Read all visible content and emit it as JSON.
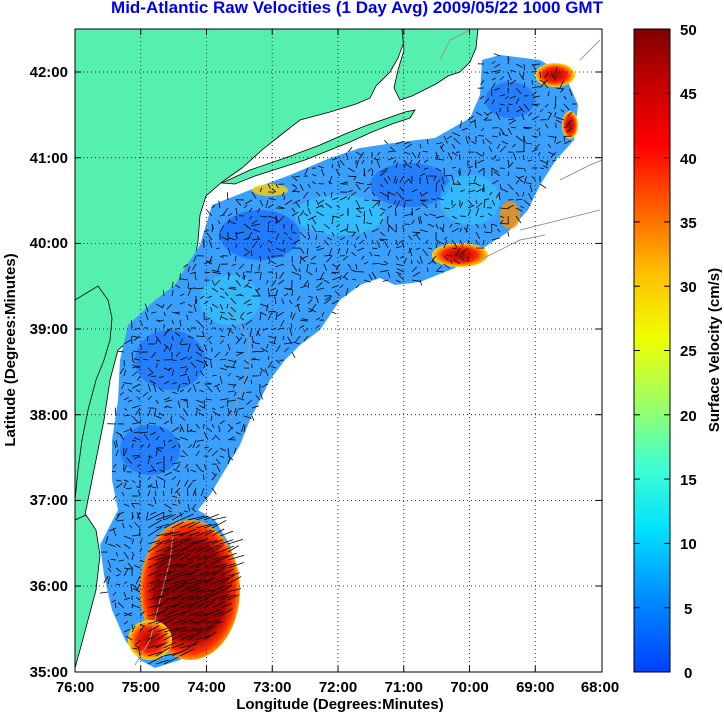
{
  "title": "Mid-Atlantic Raw Velocities (1 Day Avg) 2009/05/22 1000 GMT",
  "x_axis": {
    "label": "Longitude (Degrees:Minutes)",
    "ticks": [
      "76:00",
      "75:00",
      "74:00",
      "73:00",
      "72:00",
      "71:00",
      "70:00",
      "69:00",
      "68:00"
    ]
  },
  "y_axis": {
    "label": "Latitude (Degrees:Minutes)",
    "ticks": [
      "42:00",
      "41:00",
      "40:00",
      "39:00",
      "38:00",
      "37:00",
      "36:00",
      "35:00"
    ]
  },
  "colorbar": {
    "label": "Surface Velocity (cm/s)",
    "ticks": [
      "50",
      "45",
      "40",
      "35",
      "30",
      "25",
      "20",
      "15",
      "10",
      "5",
      "0"
    ],
    "range": [
      0,
      50
    ]
  },
  "colors": {
    "land": "#55f0b0",
    "ocean": "#ffffff",
    "title": "#0000ee",
    "arrows": "#000000",
    "bathymetry": "#999999"
  },
  "map_extent": {
    "lon_min": -76,
    "lon_max": -68,
    "lat_min": 35,
    "lat_max": 42.5
  }
}
